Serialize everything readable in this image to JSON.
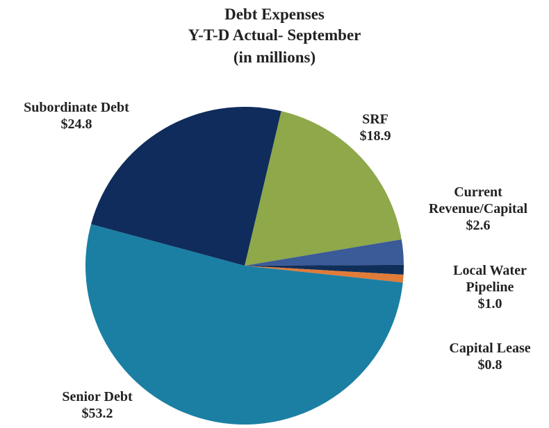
{
  "chart_data": {
    "type": "pie",
    "title": "Debt Expenses",
    "subtitle": "Y-T-D Actual- September",
    "note": "(in millions)",
    "categories": [
      "SRF",
      "Current Revenue/Capital",
      "Local Water Pipeline",
      "Capital Lease",
      "Senior Debt",
      "Subordinate Debt"
    ],
    "values": [
      18.9,
      2.6,
      1.0,
      0.8,
      53.2,
      24.8
    ],
    "value_labels": [
      "$18.9",
      "$2.6",
      "$1.0",
      "$0.8",
      "$53.2",
      "$24.8"
    ],
    "colors": [
      "#8ea84a",
      "#3b5a98",
      "#0f2f5a",
      "#e07b39",
      "#1b7fa3",
      "#0f2c5c"
    ]
  }
}
